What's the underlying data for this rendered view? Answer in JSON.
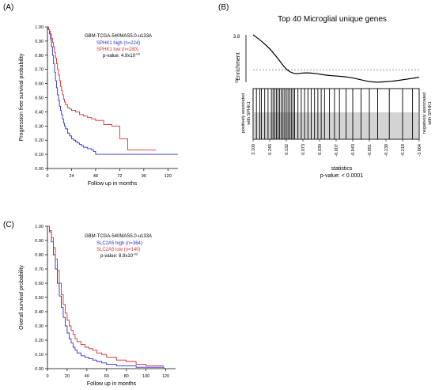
{
  "panels": {
    "A": {
      "label": "(A)"
    },
    "B": {
      "label": "(B)"
    },
    "C": {
      "label": "(C)"
    }
  },
  "chart_data": [
    {
      "type": "line",
      "panel": "A",
      "ylabel": "Progression free survival probability",
      "xlabel": "Follow up in months",
      "xlim": [
        0,
        130
      ],
      "ylim": [
        0,
        1.0
      ],
      "xticks": [
        "0",
        "24",
        "48",
        "72",
        "96",
        "120"
      ],
      "yticks": [
        "0.00",
        "0.10",
        "0.20",
        "0.30",
        "0.40",
        "0.50",
        "0.60",
        "0.70",
        "0.80",
        "0.90",
        "1.00"
      ],
      "legend": {
        "dataset": "GBM-TCGA-540MAS5.0-u133A",
        "pvalue": "p-value: 4.9x10",
        "pvalue_exp": "-03"
      },
      "series": [
        {
          "name": "SPHK1 high (n=224)",
          "color": "#2f2fc8",
          "x": [
            0,
            1,
            2,
            3,
            4,
            5,
            6,
            7,
            8,
            9,
            10,
            11,
            12,
            13,
            14,
            15,
            16,
            17,
            18,
            20,
            22,
            24,
            26,
            28,
            30,
            32,
            34,
            36,
            38,
            40,
            42,
            44,
            46,
            48,
            130
          ],
          "y": [
            1.0,
            0.98,
            0.95,
            0.91,
            0.86,
            0.8,
            0.74,
            0.68,
            0.62,
            0.57,
            0.52,
            0.48,
            0.44,
            0.41,
            0.38,
            0.35,
            0.32,
            0.3,
            0.28,
            0.25,
            0.23,
            0.21,
            0.2,
            0.19,
            0.18,
            0.17,
            0.16,
            0.15,
            0.15,
            0.14,
            0.14,
            0.13,
            0.12,
            0.1,
            0.1
          ]
        },
        {
          "name": "SPHK1 low (n=280)",
          "color": "#d23232",
          "x": [
            0,
            1,
            2,
            3,
            4,
            5,
            6,
            7,
            8,
            9,
            10,
            11,
            12,
            13,
            14,
            15,
            16,
            17,
            18,
            20,
            22,
            24,
            28,
            32,
            36,
            40,
            44,
            48,
            56,
            64,
            72,
            80,
            96,
            108
          ],
          "y": [
            1.0,
            0.98,
            0.97,
            0.95,
            0.92,
            0.89,
            0.86,
            0.82,
            0.78,
            0.74,
            0.7,
            0.66,
            0.62,
            0.58,
            0.55,
            0.52,
            0.49,
            0.47,
            0.45,
            0.43,
            0.42,
            0.41,
            0.4,
            0.38,
            0.37,
            0.36,
            0.35,
            0.34,
            0.31,
            0.3,
            0.21,
            0.13,
            0.13,
            0.13
          ]
        }
      ]
    },
    {
      "type": "line",
      "panel": "B",
      "title": "Top 40 Microglial unique genes",
      "ylabel": "Enrichment",
      "yticks": [
        "0",
        "3.8"
      ],
      "xlabel": "statistics",
      "pvalue": "p-value: < 0.0001",
      "left_side_label": [
        "positively associated",
        "with SPHK1"
      ],
      "right_side_label": [
        "negatively associated",
        "with SPHK1"
      ],
      "xticks": [
        "3.100",
        "0.245",
        "0.132",
        "0.073",
        "0.030",
        "-0.007",
        "-0.043",
        "-0.081",
        "-0.130",
        "-0.218",
        "-3.664"
      ],
      "threshold": 1.0,
      "enrichment_curve": {
        "x": [
          0,
          5,
          10,
          15,
          20,
          25,
          30,
          35,
          40,
          45,
          50,
          55,
          60,
          65,
          70,
          75,
          80,
          85,
          90,
          95,
          100
        ],
        "y": [
          3.8,
          3.3,
          2.7,
          1.9,
          1.0,
          0.65,
          0.75,
          0.75,
          0.65,
          0.55,
          0.5,
          0.45,
          0.35,
          0.2,
          0.05,
          0.0,
          0.05,
          0.1,
          0.2,
          0.3,
          0.4
        ]
      },
      "gene_hit_positions": [
        0.02,
        0.04,
        0.05,
        0.07,
        0.09,
        0.11,
        0.12,
        0.13,
        0.14,
        0.15,
        0.16,
        0.17,
        0.18,
        0.19,
        0.2,
        0.21,
        0.22,
        0.23,
        0.24,
        0.25,
        0.27,
        0.29,
        0.31,
        0.33,
        0.35,
        0.37,
        0.39,
        0.41,
        0.43,
        0.46,
        0.49,
        0.52,
        0.56,
        0.6,
        0.65,
        0.7,
        0.75,
        0.82,
        0.9,
        0.96
      ]
    },
    {
      "type": "line",
      "panel": "C",
      "ylabel": "Overall survival probability",
      "xlabel": "Follow up in months",
      "xlim": [
        0,
        130
      ],
      "ylim": [
        0,
        1.0
      ],
      "xticks": [
        "0",
        "20",
        "40",
        "60",
        "80",
        "100",
        "120"
      ],
      "yticks": [
        "0.00",
        "0.10",
        "0.20",
        "0.30",
        "0.40",
        "0.50",
        "0.60",
        "0.70",
        "0.80",
        "0.90",
        "1.00"
      ],
      "legend": {
        "dataset": "GBM-TCGA-540MAS5.0-u133A",
        "pvalue": "p-value: 8.9x10",
        "pvalue_exp": "-03"
      },
      "series": [
        {
          "name": "SLC2A5 high (n=364)",
          "color": "#2f2fc8",
          "x": [
            0,
            2,
            4,
            6,
            8,
            10,
            12,
            14,
            16,
            18,
            20,
            22,
            24,
            26,
            28,
            30,
            34,
            38,
            42,
            46,
            50,
            55,
            60,
            70,
            80,
            90,
            100,
            110,
            118
          ],
          "y": [
            1.0,
            0.96,
            0.89,
            0.8,
            0.7,
            0.6,
            0.51,
            0.43,
            0.36,
            0.3,
            0.25,
            0.21,
            0.18,
            0.15,
            0.13,
            0.11,
            0.09,
            0.08,
            0.07,
            0.06,
            0.05,
            0.04,
            0.03,
            0.02,
            0.02,
            0.01,
            0.01,
            0.01,
            0.0
          ]
        },
        {
          "name": "SLC2A5 low (n=140)",
          "color": "#d23232",
          "x": [
            0,
            2,
            4,
            6,
            8,
            10,
            12,
            14,
            16,
            18,
            20,
            22,
            24,
            26,
            28,
            30,
            34,
            38,
            42,
            46,
            50,
            55,
            60,
            70,
            80,
            90,
            100,
            110,
            118
          ],
          "y": [
            1.0,
            0.97,
            0.92,
            0.85,
            0.77,
            0.69,
            0.6,
            0.52,
            0.45,
            0.39,
            0.34,
            0.3,
            0.27,
            0.24,
            0.21,
            0.19,
            0.17,
            0.15,
            0.14,
            0.13,
            0.11,
            0.1,
            0.08,
            0.06,
            0.05,
            0.03,
            0.02,
            0.02,
            0.02
          ]
        }
      ]
    }
  ]
}
